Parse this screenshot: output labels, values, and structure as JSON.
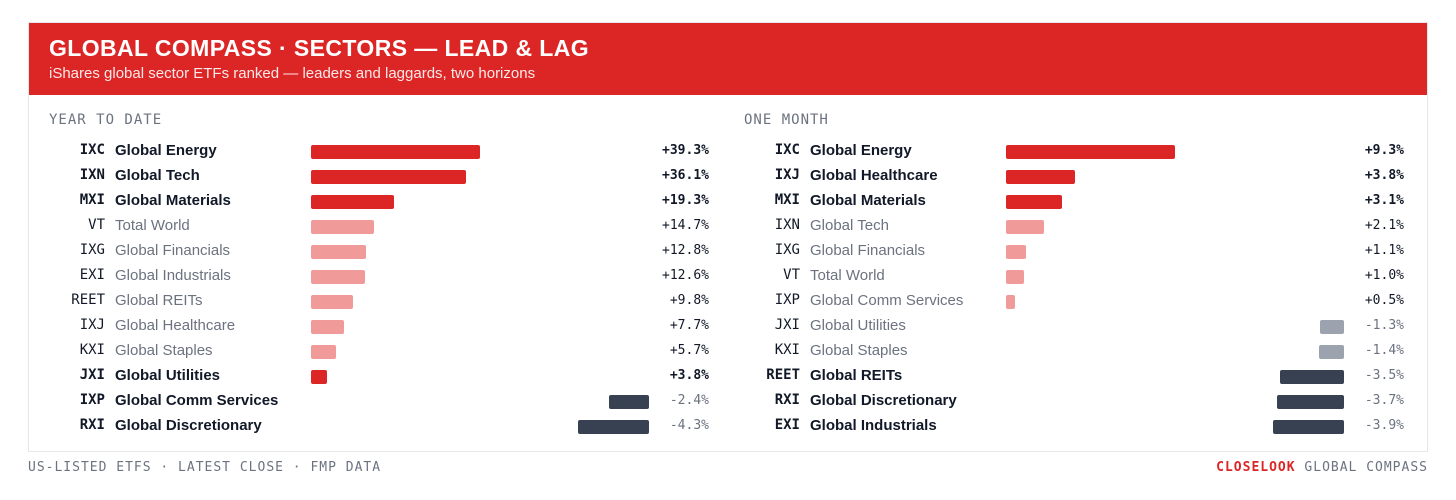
{
  "header": {
    "title": "GLOBAL COMPASS · SECTORS — LEAD & LAG",
    "subtitle": "iShares global sector ETFs ranked — leaders and laggards, two horizons"
  },
  "colors": {
    "banner": "#dc2626",
    "leader": "#dc2626",
    "mid_positive": "#f09a9a",
    "mild_negative": "#9ca3af",
    "laggard": "#374151"
  },
  "chart_data": [
    {
      "type": "bar",
      "orientation": "horizontal",
      "title": "YEAR TO DATE",
      "value_format": "percent",
      "rows": [
        {
          "ticker": "IXC",
          "name": "Global Energy",
          "value": 39.3,
          "label": "+39.3%",
          "tier": "leader"
        },
        {
          "ticker": "IXN",
          "name": "Global Tech",
          "value": 36.1,
          "label": "+36.1%",
          "tier": "leader"
        },
        {
          "ticker": "MXI",
          "name": "Global Materials",
          "value": 19.3,
          "label": "+19.3%",
          "tier": "leader"
        },
        {
          "ticker": "VT",
          "name": "Total World",
          "value": 14.7,
          "label": "+14.7%",
          "tier": "mid"
        },
        {
          "ticker": "IXG",
          "name": "Global Financials",
          "value": 12.8,
          "label": "+12.8%",
          "tier": "mid"
        },
        {
          "ticker": "EXI",
          "name": "Global Industrials",
          "value": 12.6,
          "label": "+12.6%",
          "tier": "mid"
        },
        {
          "ticker": "REET",
          "name": "Global REITs",
          "value": 9.8,
          "label": "+9.8%",
          "tier": "mid"
        },
        {
          "ticker": "IXJ",
          "name": "Global Healthcare",
          "value": 7.7,
          "label": "+7.7%",
          "tier": "mid"
        },
        {
          "ticker": "KXI",
          "name": "Global Staples",
          "value": 5.7,
          "label": "+5.7%",
          "tier": "mid"
        },
        {
          "ticker": "JXI",
          "name": "Global Utilities",
          "value": 3.8,
          "label": "+3.8%",
          "tier": "leader"
        },
        {
          "ticker": "IXP",
          "name": "Global Comm Services",
          "value": -2.4,
          "label": "-2.4%",
          "tier": "laggard"
        },
        {
          "ticker": "RXI",
          "name": "Global Discretionary",
          "value": -4.3,
          "label": "-4.3%",
          "tier": "laggard"
        }
      ]
    },
    {
      "type": "bar",
      "orientation": "horizontal",
      "title": "ONE MONTH",
      "value_format": "percent",
      "rows": [
        {
          "ticker": "IXC",
          "name": "Global Energy",
          "value": 9.3,
          "label": "+9.3%",
          "tier": "leader"
        },
        {
          "ticker": "IXJ",
          "name": "Global Healthcare",
          "value": 3.8,
          "label": "+3.8%",
          "tier": "leader"
        },
        {
          "ticker": "MXI",
          "name": "Global Materials",
          "value": 3.1,
          "label": "+3.1%",
          "tier": "leader"
        },
        {
          "ticker": "IXN",
          "name": "Global Tech",
          "value": 2.1,
          "label": "+2.1%",
          "tier": "mid"
        },
        {
          "ticker": "IXG",
          "name": "Global Financials",
          "value": 1.1,
          "label": "+1.1%",
          "tier": "mid"
        },
        {
          "ticker": "VT",
          "name": "Total World",
          "value": 1.0,
          "label": "+1.0%",
          "tier": "mid"
        },
        {
          "ticker": "IXP",
          "name": "Global Comm Services",
          "value": 0.5,
          "label": "+0.5%",
          "tier": "mid"
        },
        {
          "ticker": "JXI",
          "name": "Global Utilities",
          "value": -1.3,
          "label": "-1.3%",
          "tier": "mildneg"
        },
        {
          "ticker": "KXI",
          "name": "Global Staples",
          "value": -1.4,
          "label": "-1.4%",
          "tier": "mildneg"
        },
        {
          "ticker": "REET",
          "name": "Global REITs",
          "value": -3.5,
          "label": "-3.5%",
          "tier": "laggard"
        },
        {
          "ticker": "RXI",
          "name": "Global Discretionary",
          "value": -3.7,
          "label": "-3.7%",
          "tier": "laggard"
        },
        {
          "ticker": "EXI",
          "name": "Global Industrials",
          "value": -3.9,
          "label": "-3.9%",
          "tier": "laggard"
        }
      ]
    }
  ],
  "footer": {
    "left": "US-LISTED ETFS · LATEST CLOSE · FMP DATA",
    "brand": "CLOSELOOK",
    "brand_suffix": " GLOBAL COMPASS"
  }
}
